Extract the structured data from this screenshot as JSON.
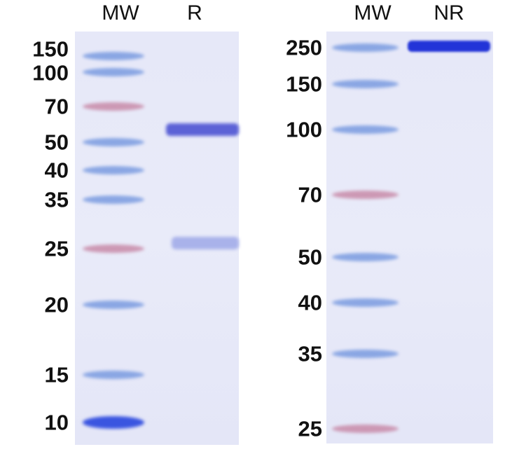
{
  "left_panel": {
    "lanes": [
      "MW",
      "R"
    ],
    "markers": [
      "150",
      "100",
      "70",
      "50",
      "40",
      "35",
      "25",
      "20",
      "15",
      "10"
    ]
  },
  "right_panel": {
    "lanes": [
      "MW",
      "NR"
    ],
    "markers": [
      "250",
      "150",
      "100",
      "70",
      "50",
      "40",
      "35",
      "25"
    ]
  },
  "colors": {
    "marker_blue": "#7a9be0",
    "marker_pink": "#c88aa8",
    "sample_band": "#5c62d6",
    "nr_band": "#2234d8",
    "gel_bg": "#e7e9f8"
  }
}
